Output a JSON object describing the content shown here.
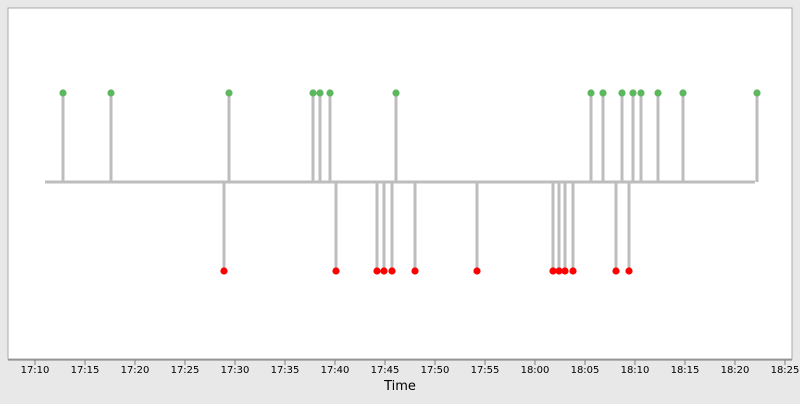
{
  "chart_data": {
    "type": "lollipop-timeline",
    "title": "",
    "xlabel": "Time",
    "ylabel": "",
    "xlim": [
      "17:10",
      "18:25"
    ],
    "x_ticks": [
      "17:10",
      "17:15",
      "17:20",
      "17:25",
      "17:30",
      "17:35",
      "17:40",
      "17:45",
      "17:50",
      "17:55",
      "18:00",
      "18:05",
      "18:10",
      "18:15",
      "18:20",
      "18:25"
    ],
    "baseline_span": [
      "17:11",
      "18:22"
    ],
    "grid": false,
    "legend": "none",
    "series": [
      {
        "direction": "up",
        "color": "#5cb85c",
        "x": [
          "17:12.8",
          "17:17.6",
          "17:29.4",
          "17:37.8",
          "17:38.5",
          "17:39.5",
          "17:46.1",
          "18:05.6",
          "18:06.8",
          "18:08.7",
          "18:09.8",
          "18:10.6",
          "18:12.3",
          "18:14.8",
          "18:22.2"
        ]
      },
      {
        "direction": "down",
        "color": "#ff0000",
        "x": [
          "17:28.9",
          "17:40.1",
          "17:44.2",
          "17:44.9",
          "17:45.7",
          "17:48.0",
          "17:54.2",
          "18:01.8",
          "18:02.4",
          "18:03.0",
          "18:03.8",
          "18:08.1",
          "18:09.4"
        ]
      }
    ]
  }
}
